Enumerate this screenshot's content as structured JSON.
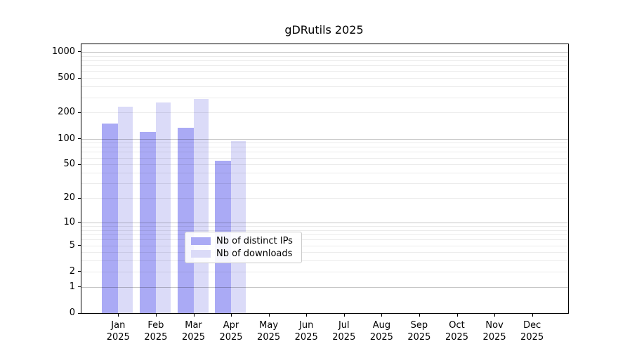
{
  "chart_data": {
    "type": "bar",
    "title": "gDRutils 2025",
    "categories": [
      "Jan 2025",
      "Feb 2025",
      "Mar 2025",
      "Apr 2025",
      "May 2025",
      "Jun 2025",
      "Jul 2025",
      "Aug 2025",
      "Sep 2025",
      "Oct 2025",
      "Nov 2025",
      "Dec 2025"
    ],
    "series": [
      {
        "name": "Nb of distinct IPs",
        "color": "#aaaaf5",
        "values": [
          150,
          120,
          134,
          55,
          null,
          null,
          null,
          null,
          null,
          null,
          null,
          null
        ]
      },
      {
        "name": "Nb of downloads",
        "color": "#dbdbf8",
        "values": [
          236,
          260,
          289,
          93,
          null,
          null,
          null,
          null,
          null,
          null,
          null,
          null
        ]
      }
    ],
    "yscale": "log1p",
    "yticks": [
      0,
      1,
      2,
      5,
      10,
      20,
      50,
      100,
      200,
      500,
      1000
    ],
    "ylim": [
      0,
      1250
    ],
    "grid": "horizontal major and minor, drawn over bars",
    "legend_position": "inside plot, lower left-center"
  }
}
